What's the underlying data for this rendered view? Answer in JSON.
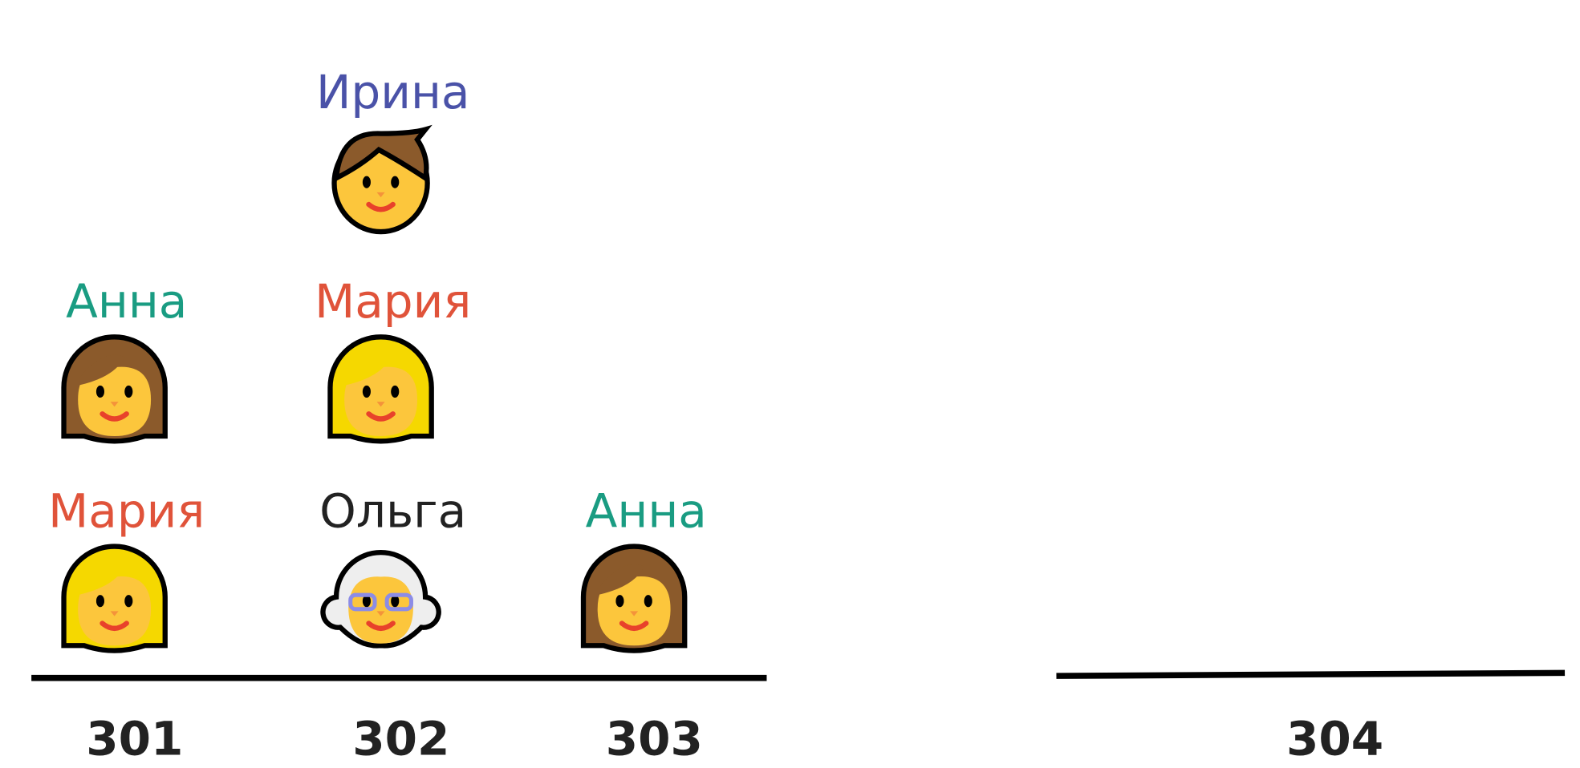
{
  "rooms": [
    {
      "label": "301",
      "people": [
        {
          "name": "Мария",
          "color": "#e0533a",
          "avatar": "blonde-woman"
        },
        {
          "name": "Анна",
          "color": "#1a9c82",
          "avatar": "brown-woman"
        }
      ]
    },
    {
      "label": "302",
      "people": [
        {
          "name": "Ольга",
          "color": "#222222",
          "avatar": "old-woman"
        },
        {
          "name": "Мария",
          "color": "#e0533a",
          "avatar": "blonde-woman"
        },
        {
          "name": "Ирина",
          "color": "#4a52a8",
          "avatar": "child"
        }
      ]
    },
    {
      "label": "303",
      "people": [
        {
          "name": "Анна",
          "color": "#1a9c82",
          "avatar": "brown-woman"
        }
      ]
    },
    {
      "label": "304",
      "people": []
    }
  ]
}
